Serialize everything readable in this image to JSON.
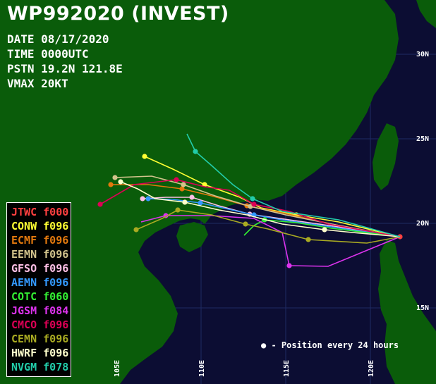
{
  "header": {
    "title": "WP992020 (INVEST)",
    "date": "DATE 08/17/2020",
    "time": "TIME 0000UTC",
    "position": "PSTN 19.2N 121.8E",
    "vmax": "VMAX 20KT"
  },
  "axes": {
    "lat_labels": [
      "30N",
      "25N",
      "20N",
      "15N"
    ],
    "lon_labels": [
      "105E",
      "110E",
      "115E",
      "120E"
    ]
  },
  "legend": {
    "items": [
      {
        "model": "JTWC",
        "tau": "f000",
        "color": "#ff4040"
      },
      {
        "model": "CONW",
        "tau": "f096",
        "color": "#ffff33"
      },
      {
        "model": "ECMF",
        "tau": "f096",
        "color": "#e3790e"
      },
      {
        "model": "EEMN",
        "tau": "f096",
        "color": "#d2c38c"
      },
      {
        "model": "GFSO",
        "tau": "f096",
        "color": "#ffc0e6"
      },
      {
        "model": "AEMN",
        "tau": "f096",
        "color": "#3399ff"
      },
      {
        "model": "COTC",
        "tau": "f060",
        "color": "#33ee33"
      },
      {
        "model": "JGSM",
        "tau": "f084",
        "color": "#dd33ee"
      },
      {
        "model": "CMCO",
        "tau": "f096",
        "color": "#dd0055"
      },
      {
        "model": "CEMN",
        "tau": "f096",
        "color": "#a9aa22"
      },
      {
        "model": "HWRF",
        "tau": "f096",
        "color": "#ffffcc"
      },
      {
        "model": "NVGM",
        "tau": "f078",
        "color": "#22ccaa"
      }
    ]
  },
  "note": "- Position every 24 hours",
  "colors": {
    "ocean": "#0c0d33",
    "land": "#0a5c0a",
    "grid": "#1e2a63"
  }
}
